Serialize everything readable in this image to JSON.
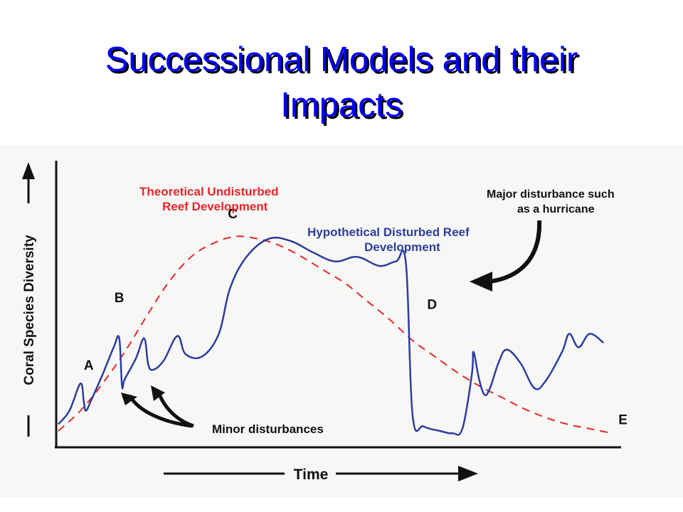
{
  "slide": {
    "title_line1": "Successional Models and their",
    "title_line2": "Impacts"
  },
  "chart_data": {
    "type": "line",
    "title": "",
    "xlabel": "Time",
    "ylabel": "Coral Species Diversity",
    "xlim": [
      0,
      100
    ],
    "ylim": [
      0,
      100
    ],
    "grid": false,
    "series": [
      {
        "name": "Theoretical Undisturbed Reef Development",
        "color": "#e8262a",
        "style": "dashed",
        "x": [
          0,
          4,
          8,
          12,
          16,
          20,
          24,
          28,
          32,
          36,
          40,
          44,
          48,
          52,
          56,
          60,
          64,
          68,
          72,
          76,
          80,
          84,
          88,
          92,
          96,
          100
        ],
        "y": [
          5,
          14,
          26,
          40,
          56,
          71,
          82,
          88,
          91,
          90,
          87,
          82,
          76,
          70,
          62,
          54,
          45,
          38,
          31,
          25,
          20,
          15,
          11,
          8,
          6,
          4
        ]
      },
      {
        "name": "Hypothetical Disturbed Reef Development",
        "color": "#2c3e9c",
        "style": "solid",
        "x": [
          0,
          2,
          4,
          4.6,
          5,
          6,
          8,
          10,
          11,
          11.5,
          12,
          14,
          15.5,
          16.2,
          17,
          19,
          21.5,
          23,
          26,
          29,
          31,
          34,
          38,
          42,
          46,
          50,
          54,
          58,
          61,
          62.8,
          64,
          66,
          69,
          71.2,
          73,
          74.7,
          75,
          76,
          77,
          78,
          79.5,
          81,
          83.5,
          86,
          88,
          91,
          92.3,
          94,
          96,
          98.5
        ],
        "y": [
          8,
          14,
          26,
          18,
          14,
          19,
          30,
          42,
          46,
          25,
          28,
          37,
          46,
          35,
          32,
          36,
          47,
          39,
          38,
          48,
          68,
          82,
          90,
          89,
          84,
          80,
          82,
          78,
          80,
          79,
          12,
          7,
          5,
          4,
          6,
          30,
          40,
          28,
          21,
          24,
          35,
          41,
          35,
          24,
          27,
          40,
          48,
          42,
          48,
          44
        ]
      }
    ],
    "annotations": [
      {
        "text": "A",
        "x": 5.5,
        "y": 32
      },
      {
        "text": "B",
        "x": 11,
        "y": 62
      },
      {
        "text": "C",
        "x": 31.5,
        "y": 99
      },
      {
        "text": "D",
        "x": 67.5,
        "y": 59
      },
      {
        "text": "E",
        "x": 102,
        "y": 8
      },
      {
        "text": "Minor disturbances"
      },
      {
        "text": "Major disturbance such as a hurricane"
      }
    ],
    "labels": {
      "theoretical_line1": "Theoretical Undisturbed",
      "theoretical_line2": "Reef Development",
      "hypothetical_line1": "Hypothetical Disturbed Reef",
      "hypothetical_line2": "Development",
      "major_line1": "Major disturbance such",
      "major_line2": "as a hurricane",
      "minor": "Minor disturbances"
    }
  }
}
